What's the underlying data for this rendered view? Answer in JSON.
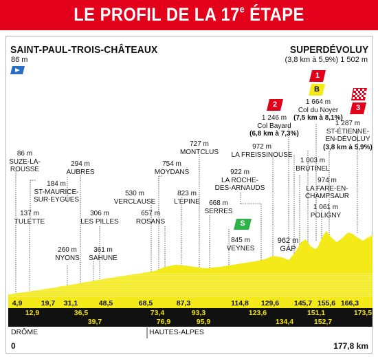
{
  "header": {
    "title_main": "LE PROFIL DE LA 17",
    "title_sup": "e",
    "title_tail": " ÉTAPE",
    "color": "#e2001a"
  },
  "start": {
    "name": "SAINT-PAUL-TROIS-CHÂTEAUX",
    "altitude": "86 m"
  },
  "finish": {
    "name": "SUPERDÉVOLUY",
    "detail": "(3,8 km à 5,9%) 1 502 m"
  },
  "colors": {
    "profile_fill": "#f4ea1a",
    "km_band": "#111111",
    "km_text_bottom": "#f1e200",
    "sprint_green": "#2db34a",
    "climb_red": "#e2001a",
    "climb_yellow": "#f4ea1a"
  },
  "places": [
    {
      "name": "SUZE-LA-ROUSSE",
      "lines": [
        "86 m",
        "SUZE-LA-",
        "ROUSSE"
      ]
    },
    {
      "name": "TULETTE",
      "lines": [
        "137 m",
        "TULETTE"
      ]
    },
    {
      "name": "ST-MAURICE-SUR-EYGUES",
      "lines": [
        "184 m",
        "ST-MAURICE-",
        "SUR-EYGUES"
      ]
    },
    {
      "name": "NYONS",
      "lines": [
        "260 m",
        "NYONS"
      ]
    },
    {
      "name": "AUBRES",
      "lines": [
        "294 m",
        "AUBRES"
      ]
    },
    {
      "name": "LES PILLES",
      "lines": [
        "306 m",
        "LES PILLES"
      ]
    },
    {
      "name": "SAHUNE",
      "lines": [
        "361 m",
        "SAHUNE"
      ]
    },
    {
      "name": "VERCLAUSE",
      "lines": [
        "530 m",
        "VERCLAUSE"
      ]
    },
    {
      "name": "MOYDANS",
      "lines": [
        "754 m",
        "MOYDANS"
      ]
    },
    {
      "name": "ROSANS",
      "lines": [
        "657 m",
        "ROSANS"
      ]
    },
    {
      "name": "L'ÉPINE",
      "lines": [
        "823 m",
        "L'ÉPINE"
      ]
    },
    {
      "name": "MONTCLUS",
      "lines": [
        "727 m",
        "MONTCLUS"
      ]
    },
    {
      "name": "SERRES",
      "lines": [
        "668 m",
        "SERRES"
      ]
    },
    {
      "name": "VEYNES",
      "lines": [
        "845 m",
        "VEYNES"
      ]
    },
    {
      "name": "LA ROCHE-DES-ARNAUDS",
      "lines": [
        "922 m",
        "LA ROCHE-",
        "DES-ARNAUDS"
      ]
    },
    {
      "name": "LA FREISSINOUSE",
      "lines": [
        "972 m",
        "LA FREISSINOUSE"
      ]
    },
    {
      "name": "Col Bayard",
      "lines": [
        "1 246 m",
        "Col Bayard"
      ],
      "bold_line": "(6,8 km à 7,3%)"
    },
    {
      "name": "GAP",
      "lines": [
        "962 m",
        "GAP"
      ]
    },
    {
      "name": "BRUTINEL",
      "lines": [
        "1 003 m",
        "BRUTINEL"
      ]
    },
    {
      "name": "LA FARE-EN-CHAMPSAUR",
      "lines": [
        "974 m",
        "LA FARE-EN-",
        "CHAMPSAUR"
      ]
    },
    {
      "name": "POLIGNY",
      "lines": [
        "1 061 m",
        "POLIGNY"
      ]
    },
    {
      "name": "Col du Noyer",
      "lines": [
        "1 664 m",
        "Col du Noyer"
      ],
      "bold_line": "(7,5 km à 8,1%)"
    },
    {
      "name": "ST-ÉTIENNE-EN-DÉVOLUY",
      "lines": [
        "1 287 m",
        "ST-ÉTIENNE-",
        "EN-DÉVOLUY"
      ],
      "bold_line": "(3,8 km à 5,9%)"
    }
  ],
  "climbs": [
    {
      "category": "2"
    },
    {
      "category": "1"
    },
    {
      "category": "B"
    },
    {
      "category": "3"
    }
  ],
  "sprint": {
    "label": "S"
  },
  "km_marks": {
    "top": [
      "4,9",
      "19,7",
      "31,1",
      "48,5",
      "68,5",
      "87,3",
      "114,8",
      "129,6",
      "145,7",
      "155,6",
      "166,3"
    ],
    "middle": [
      "12,9",
      "36,5",
      "73,4",
      "93,3",
      "123,6",
      "151,1",
      "173,5"
    ],
    "bottom": [
      "39,7",
      "76,9",
      "95,9",
      "134,4",
      "152,7"
    ]
  },
  "regions": {
    "left": "DRÔME",
    "right": "HAUTES-ALPES"
  },
  "distance": {
    "start": "0",
    "end": "177,8 km"
  }
}
